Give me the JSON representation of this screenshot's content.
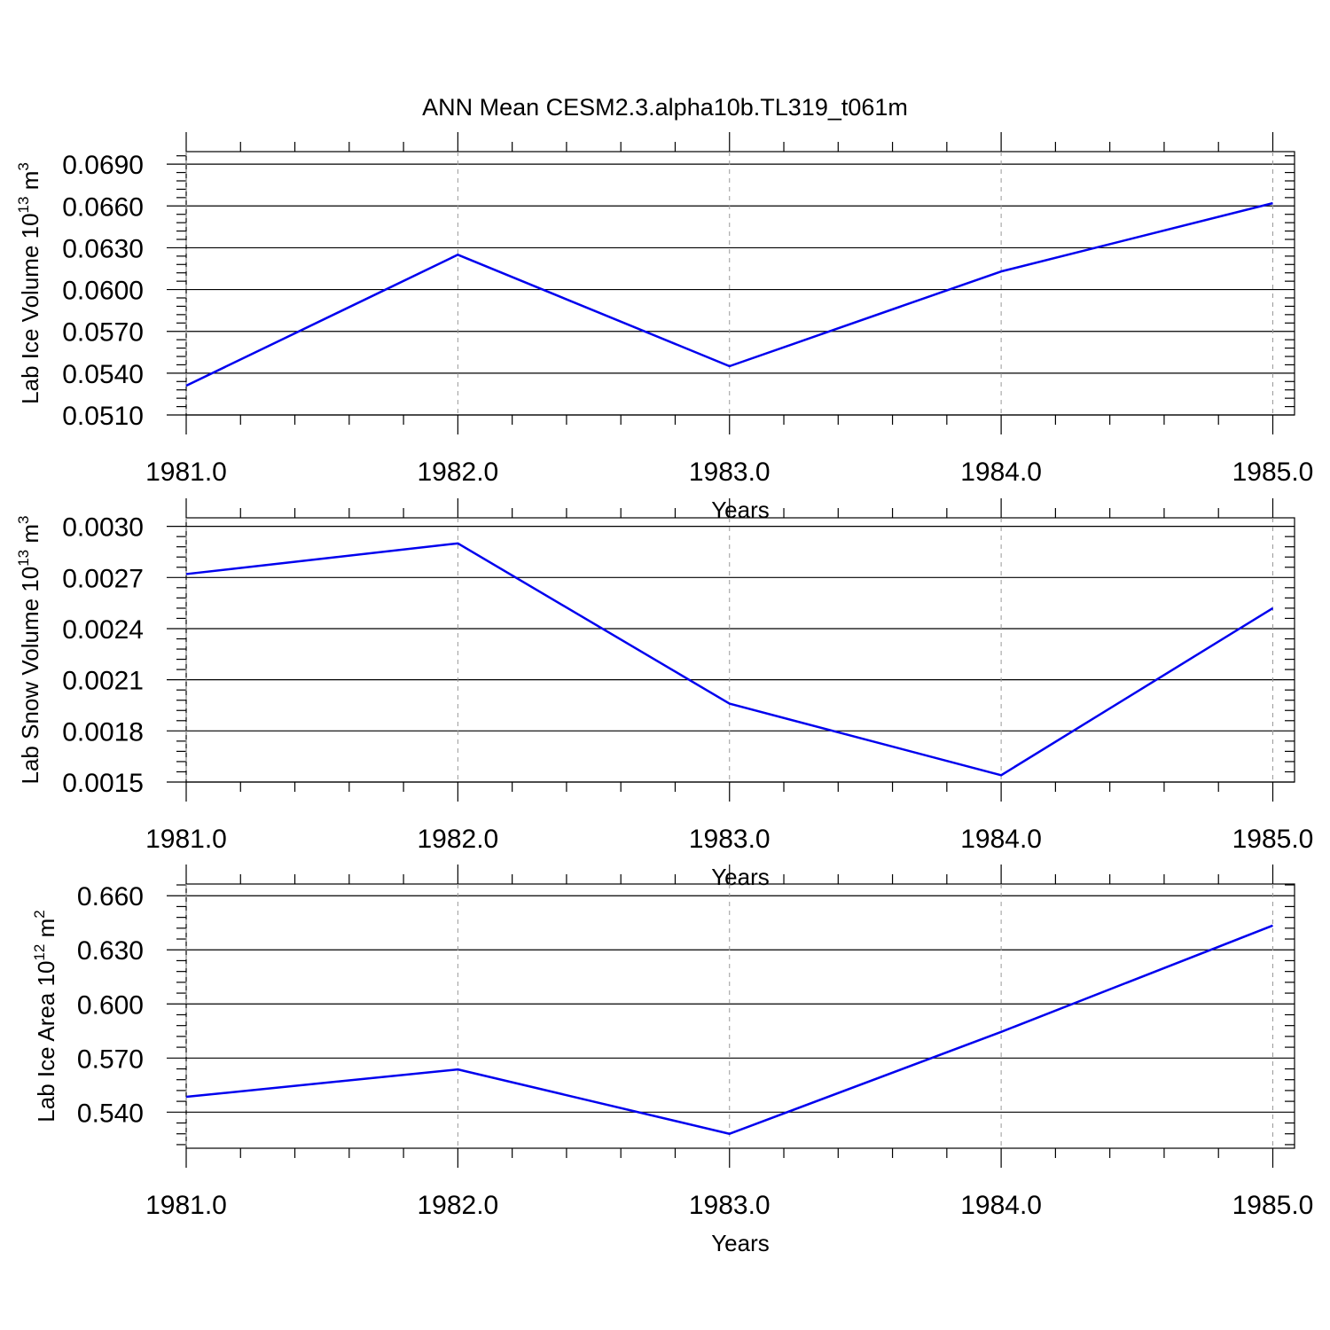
{
  "title": "ANN Mean CESM2.3.alpha10b.TL319_t061m",
  "colors": {
    "series": "#0000ee",
    "axis": "#000000",
    "grid": "#9a9a9a"
  },
  "chart_data": [
    {
      "type": "line",
      "title": "",
      "xlabel": "Years",
      "ylabel": "Lab Ice Volume 10",
      "ylabel_exp": "13",
      "ylabel_unit": " m",
      "ylabel_unit_exp": "3",
      "x": [
        1981,
        1982,
        1983,
        1984,
        1985
      ],
      "xlim": [
        1981,
        1985.08
      ],
      "xticks": [
        "1981.0",
        "1982.0",
        "1983.0",
        "1984.0",
        "1985.0"
      ],
      "ylim": [
        0.051,
        0.0699
      ],
      "yticks": [
        "0.0510",
        "0.0540",
        "0.0570",
        "0.0600",
        "0.0630",
        "0.0660",
        "0.0690"
      ],
      "y_minor_step": 0.0006,
      "grid": "x-dashed",
      "series": [
        {
          "values": [
            0.0531,
            0.0625,
            0.0545,
            0.0613,
            0.0662
          ]
        }
      ]
    },
    {
      "type": "line",
      "title": "",
      "xlabel": "Years",
      "ylabel": "Lab Snow Volume 10",
      "ylabel_exp": "13",
      "ylabel_unit": " m",
      "ylabel_unit_exp": "3",
      "x": [
        1981,
        1982,
        1983,
        1984,
        1985
      ],
      "xlim": [
        1981,
        1985.08
      ],
      "xticks": [
        "1981.0",
        "1982.0",
        "1983.0",
        "1984.0",
        "1985.0"
      ],
      "ylim": [
        0.0015,
        0.00305
      ],
      "yticks": [
        "0.0015",
        "0.0018",
        "0.0021",
        "0.0024",
        "0.0027",
        "0.0030"
      ],
      "y_minor_step": 6e-05,
      "grid": "x-dashed",
      "series": [
        {
          "values": [
            0.00272,
            0.0029,
            0.00196,
            0.00154,
            0.00252
          ]
        }
      ]
    },
    {
      "type": "line",
      "title": "",
      "xlabel": "Years",
      "ylabel": "Lab Ice Area 10",
      "ylabel_exp": "12",
      "ylabel_unit": " m",
      "ylabel_unit_exp": "2",
      "x": [
        1981,
        1982,
        1983,
        1984,
        1985
      ],
      "xlim": [
        1981,
        1985.08
      ],
      "xticks": [
        "1981.0",
        "1982.0",
        "1983.0",
        "1984.0",
        "1985.0"
      ],
      "ylim": [
        0.52,
        0.6665
      ],
      "yticks": [
        "0.540",
        "0.570",
        "0.600",
        "0.630",
        "0.660"
      ],
      "ytick_values": [
        0.54,
        0.57,
        0.6,
        0.63,
        0.66
      ],
      "y_minor_step": 0.006,
      "grid": "x-dashed",
      "series": [
        {
          "values": [
            0.5485,
            0.5637,
            0.528,
            0.5845,
            0.6435
          ]
        }
      ]
    }
  ]
}
